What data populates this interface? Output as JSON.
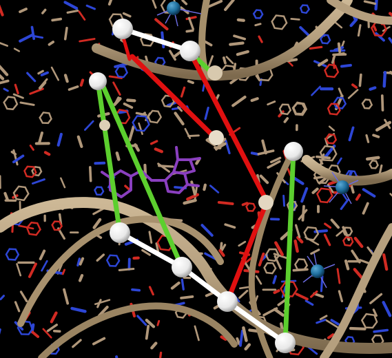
{
  "scene": {
    "kind": "molecular-structure-render",
    "colors": {
      "background": "#000000",
      "backbone": "#b59f7e",
      "backbone_shade": "#8a7657",
      "base_carbon": "#b0977a",
      "nitrogen": "#2d46d6",
      "oxygen": "#d12a22",
      "ligand": "#8a3fbf",
      "ion": "#1f6f9e",
      "ion_coordination": "#6a6ae0",
      "white_link": "#ffffff",
      "green_link": "#5ccf2e",
      "red_link": "#e01010",
      "node": "#f2f2f2"
    },
    "ion_count": 3,
    "node_count": 10,
    "links": {
      "white": 4,
      "green": 3,
      "red": 3
    }
  }
}
